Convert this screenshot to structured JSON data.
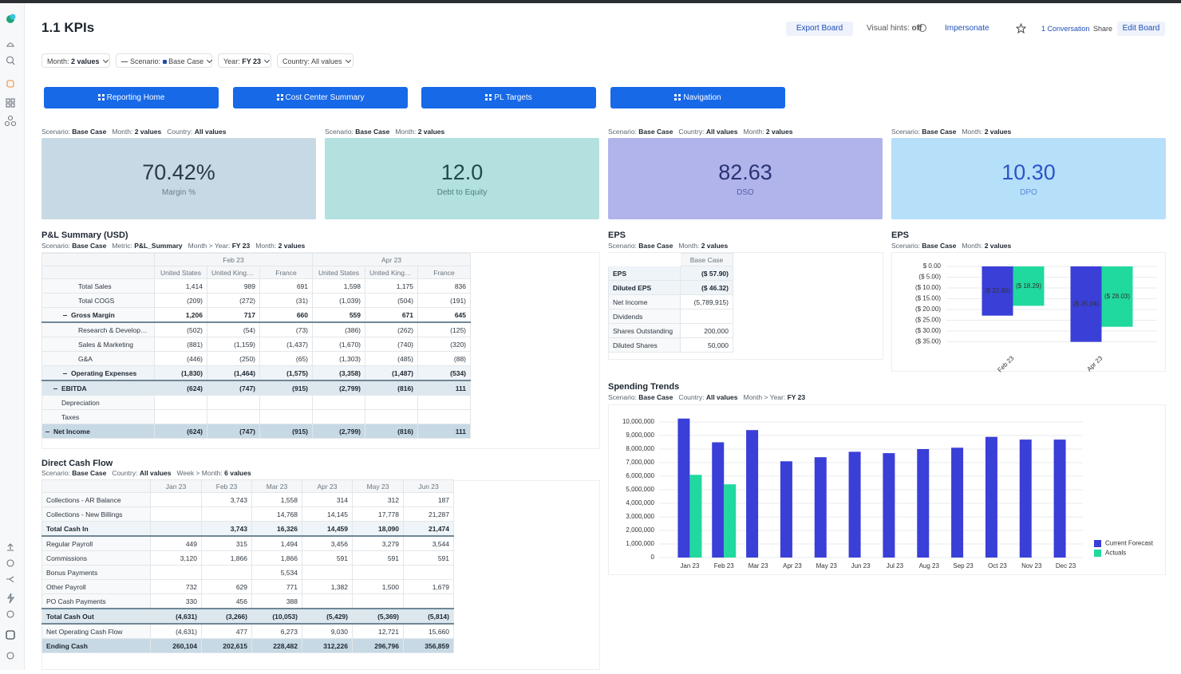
{
  "header": {
    "title": "1.1 KPIs",
    "export": "Export Board",
    "hints_label": "Visual hints:",
    "hints_value": "off",
    "impersonate": "Impersonate",
    "conversation": "1 Conversation",
    "share": "Share",
    "edit": "Edit Board"
  },
  "filters": [
    {
      "label": "Month:",
      "value": "2 values"
    },
    {
      "label": "Scenario:",
      "value": "Base Case"
    },
    {
      "label": "Year:",
      "value": "FY 23"
    },
    {
      "label": "Country:",
      "value": "All values"
    }
  ],
  "nav_buttons": [
    "Reporting Home",
    "Cost Center Summary",
    "PL Targets",
    "Navigation"
  ],
  "kpis": [
    {
      "context": [
        {
          "label": "Scenario:",
          "value": "Base Case"
        },
        {
          "label": "Month:",
          "value": "2 values"
        },
        {
          "label": "Country:",
          "value": "All values"
        }
      ],
      "value": "70.42%",
      "label": "Margin %"
    },
    {
      "context": [
        {
          "label": "Scenario:",
          "value": "Base Case"
        },
        {
          "label": "Month:",
          "value": "2 values"
        }
      ],
      "value": "12.0",
      "label": "Debt to Equity"
    },
    {
      "context": [
        {
          "label": "Scenario:",
          "value": "Base Case"
        },
        {
          "label": "Country:",
          "value": "All values"
        },
        {
          "label": "Month:",
          "value": "2 values"
        }
      ],
      "value": "82.63",
      "label": "DSO"
    },
    {
      "context": [
        {
          "label": "Scenario:",
          "value": "Base Case"
        },
        {
          "label": "Month:",
          "value": "2 values"
        }
      ],
      "value": "10.30",
      "label": "DPO"
    }
  ],
  "pl_summary": {
    "title": "P&L Summary (USD)",
    "context": [
      {
        "label": "Scenario:",
        "value": "Base Case"
      },
      {
        "label": "Metric:",
        "value": "P&L_Summary"
      },
      {
        "label": "Month > Year:",
        "value": "FY 23"
      },
      {
        "label": "Month:",
        "value": "2 values"
      }
    ],
    "column_groups": [
      "Feb 23",
      "Apr 23"
    ],
    "columns": [
      "United States",
      "United Kingdom",
      "France",
      "United States",
      "United Kingdom",
      "France"
    ],
    "rows": [
      {
        "label": "Total Sales",
        "values": [
          "1,414",
          "989",
          "691",
          "1,598",
          "1,175",
          "836"
        ]
      },
      {
        "label": "Total COGS",
        "values": [
          "(209)",
          "(272)",
          "(31)",
          "(1,039)",
          "(504)",
          "(191)"
        ]
      },
      {
        "label": "Gross Margin",
        "values": [
          "1,206",
          "717",
          "660",
          "559",
          "671",
          "645"
        ]
      },
      {
        "label": "Research & Developme...",
        "values": [
          "(502)",
          "(54)",
          "(73)",
          "(386)",
          "(262)",
          "(125)"
        ]
      },
      {
        "label": "Sales & Marketing",
        "values": [
          "(881)",
          "(1,159)",
          "(1,437)",
          "(1,670)",
          "(740)",
          "(320)"
        ]
      },
      {
        "label": "G&A",
        "values": [
          "(446)",
          "(250)",
          "(65)",
          "(1,303)",
          "(485)",
          "(88)"
        ]
      },
      {
        "label": "Operating Expenses",
        "values": [
          "(1,830)",
          "(1,464)",
          "(1,575)",
          "(3,358)",
          "(1,487)",
          "(534)"
        ]
      },
      {
        "label": "EBITDA",
        "values": [
          "(624)",
          "(747)",
          "(915)",
          "(2,799)",
          "(816)",
          "111"
        ]
      },
      {
        "label": "Depreciation",
        "values": [
          null,
          null,
          null,
          null,
          null,
          null
        ]
      },
      {
        "label": "Taxes",
        "values": [
          null,
          null,
          null,
          null,
          null,
          null
        ]
      },
      {
        "label": "Net Income",
        "values": [
          "(624)",
          "(747)",
          "(915)",
          "(2,799)",
          "(816)",
          "111"
        ]
      }
    ]
  },
  "eps_table": {
    "title": "EPS",
    "context": [
      {
        "label": "Scenario:",
        "value": "Base Case"
      },
      {
        "label": "Month:",
        "value": "2 values"
      }
    ],
    "columns": [
      "Base Case"
    ],
    "rows": [
      {
        "label": "EPS",
        "value": "($ 57.90)"
      },
      {
        "label": "Diluted EPS",
        "value": "($ 46.32)"
      },
      {
        "label": "Net Income",
        "value": "(5,789,915)"
      },
      {
        "label": "Dividends",
        "value": null
      },
      {
        "label": "Shares Outstanding",
        "value": "200,000"
      },
      {
        "label": "Diluted Shares",
        "value": "50,000"
      }
    ]
  },
  "cash_flow": {
    "title": "Direct Cash Flow",
    "context": [
      {
        "label": "Scenario:",
        "value": "Base Case"
      },
      {
        "label": "Country:",
        "value": "All values"
      },
      {
        "label": "Week > Month:",
        "value": "6 values"
      }
    ],
    "columns": [
      "Jan 23",
      "Feb 23",
      "Mar 23",
      "Apr 23",
      "May 23",
      "Jun 23"
    ],
    "rows": [
      {
        "label": "Collections - AR Balance",
        "values": [
          null,
          "3,743",
          "1,558",
          "314",
          "312",
          "187"
        ]
      },
      {
        "label": "Collections - New Billings",
        "values": [
          null,
          null,
          "14,768",
          "14,145",
          "17,778",
          "21,287"
        ]
      },
      {
        "label": "Total Cash In",
        "values": [
          null,
          "3,743",
          "16,326",
          "14,459",
          "18,090",
          "21,474"
        ]
      },
      {
        "label": "Regular Payroll",
        "values": [
          "449",
          "315",
          "1,494",
          "3,456",
          "3,279",
          "3,544"
        ]
      },
      {
        "label": "Commissions",
        "values": [
          "3,120",
          "1,866",
          "1,866",
          "591",
          "591",
          "591"
        ]
      },
      {
        "label": "Bonus Payments",
        "values": [
          null,
          null,
          "5,534",
          null,
          null,
          null
        ]
      },
      {
        "label": "Other Payroll",
        "values": [
          "732",
          "629",
          "771",
          "1,382",
          "1,500",
          "1,679"
        ]
      },
      {
        "label": "PO Cash Payments",
        "values": [
          "330",
          "456",
          "388",
          null,
          null,
          null
        ]
      },
      {
        "label": "Total Cash Out",
        "values": [
          "(4,631)",
          "(3,266)",
          "(10,053)",
          "(5,429)",
          "(5,369)",
          "(5,814)"
        ]
      },
      {
        "label": "Net Operating Cash Flow",
        "values": [
          "(4,631)",
          "477",
          "6,273",
          "9,030",
          "12,721",
          "15,660"
        ]
      },
      {
        "label": "Ending Cash",
        "values": [
          "260,104",
          "202,615",
          "228,482",
          "312,226",
          "296,796",
          "356,859"
        ]
      }
    ]
  },
  "chart_data": [
    {
      "type": "bar",
      "title": "EPS",
      "context": [
        {
          "label": "Scenario:",
          "value": "Base Case"
        },
        {
          "label": "Month:",
          "value": "2 values"
        }
      ],
      "categories": [
        "Feb 23",
        "Apr 23"
      ],
      "series": [
        {
          "color": "#3a3fd8",
          "values": [
            -22.86,
            -35.04
          ],
          "value_labels": [
            "($ 22.86)",
            "($ 35.04)"
          ]
        },
        {
          "color": "#20d99e",
          "values": [
            -18.29,
            -28.03
          ],
          "value_labels": [
            "($ 18.29)",
            "($ 28.03)"
          ]
        }
      ],
      "ylim": [
        -37,
        0
      ],
      "yticks": [
        {
          "value": 0,
          "label": "$ 0.00"
        },
        {
          "value": -5,
          "label": "($ 5.00)"
        },
        {
          "value": -10,
          "label": "($ 10.00)"
        },
        {
          "value": -15,
          "label": "($ 15.00)"
        },
        {
          "value": -20,
          "label": "($ 20.00)"
        },
        {
          "value": -25,
          "label": "($ 25.00)"
        },
        {
          "value": -30,
          "label": "($ 30.00)"
        },
        {
          "value": -35,
          "label": "($ 35.00)"
        }
      ],
      "grid": true
    },
    {
      "type": "bar",
      "title": "Spending Trends",
      "context": [
        {
          "label": "Scenario:",
          "value": "Base Case"
        },
        {
          "label": "Country:",
          "value": "All values"
        },
        {
          "label": "Month > Year:",
          "value": "FY 23"
        }
      ],
      "categories": [
        "Jan 23",
        "Feb 23",
        "Mar 23",
        "Apr 23",
        "May 23",
        "Jun 23",
        "Jul 23",
        "Aug 23",
        "Sep 23",
        "Oct 23",
        "Nov 23",
        "Dec 23"
      ],
      "series": [
        {
          "name": "Current Forecast",
          "color": "#3a3fd8",
          "values": [
            10250000,
            8500000,
            9400000,
            7100000,
            7400000,
            7800000,
            7700000,
            8000000,
            8100000,
            8900000,
            8700000,
            8700000
          ]
        },
        {
          "name": "Actuals",
          "color": "#20d99e",
          "values": [
            6100000,
            5400000,
            null,
            null,
            null,
            null,
            null,
            null,
            null,
            null,
            null,
            null
          ]
        }
      ],
      "ylim": [
        0,
        10500000
      ],
      "yticks": [
        0,
        {
          "value": 1000000,
          "label": "1,000,000"
        },
        {
          "value": 2000000,
          "label": "2,000,000"
        },
        {
          "value": 3000000,
          "label": "3,000,000"
        },
        {
          "value": 4000000,
          "label": "4,000,000"
        },
        {
          "value": 5000000,
          "label": "5,000,000"
        },
        {
          "value": 6000000,
          "label": "6,000,000"
        },
        {
          "value": 7000000,
          "label": "7,000,000"
        },
        {
          "value": 8000000,
          "label": "8,000,000"
        },
        {
          "value": 9000000,
          "label": "9,000,000"
        },
        {
          "value": 10000000,
          "label": "10,000,000"
        }
      ],
      "grid": true,
      "legend": "bottom-right"
    }
  ]
}
